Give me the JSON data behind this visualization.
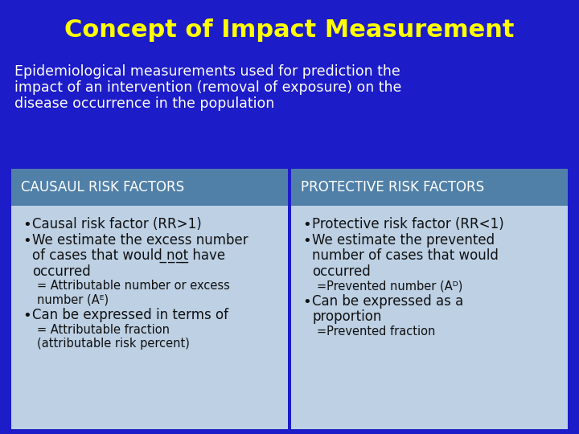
{
  "title": "Concept of Impact Measurement",
  "title_color": "#FFFF00",
  "title_fontsize": 22,
  "bg_color": "#1C1CC8",
  "subtitle_line1": "Epidemiological measurements used for prediction the",
  "subtitle_line2": "impact of an intervention (removal of exposure) on the",
  "subtitle_line3": "disease occurrence in the population",
  "subtitle_color": "#FFFFFF",
  "subtitle_fontsize": 12.5,
  "header_bg": "#5080A8",
  "header_text_color": "#FFFFFF",
  "header_fontsize": 12,
  "cell_bg": "#BDD0E4",
  "cell_text_color": "#111111",
  "left_header": "CAUSAUL RISK FACTORS",
  "right_header": "PROTECTIVE RISK FACTORS",
  "left_items": [
    {
      "bullet": true,
      "text": "Causal risk factor (RR>1)",
      "sub": false,
      "size": 12.0
    },
    {
      "bullet": true,
      "text": "We estimate the excess number",
      "sub": false,
      "size": 12.0
    },
    {
      "bullet": false,
      "text": "of cases that would ̲n̲o̲t̲ have",
      "sub": false,
      "size": 12.0
    },
    {
      "bullet": false,
      "text": "occurred",
      "sub": false,
      "size": 12.0
    },
    {
      "bullet": false,
      "text": "= Attributable number or excess",
      "sub": true,
      "size": 10.5
    },
    {
      "bullet": false,
      "text": "number (Aᴱ)",
      "sub": true,
      "size": 10.5
    },
    {
      "bullet": true,
      "text": "Can be expressed in terms of",
      "sub": false,
      "size": 12.0
    },
    {
      "bullet": false,
      "text": "= Attributable fraction",
      "sub": true,
      "size": 10.5
    },
    {
      "bullet": false,
      "text": "(attributable risk percent)",
      "sub": true,
      "size": 10.5
    }
  ],
  "right_items": [
    {
      "bullet": true,
      "text": "Protective risk factor (RR<1)",
      "sub": false,
      "size": 12.0
    },
    {
      "bullet": true,
      "text": "We estimate the prevented",
      "sub": false,
      "size": 12.0
    },
    {
      "bullet": false,
      "text": "number of cases that would",
      "sub": false,
      "size": 12.0
    },
    {
      "bullet": false,
      "text": "occurred",
      "sub": false,
      "size": 12.0
    },
    {
      "bullet": false,
      "text": "=Prevented number (Aᴰ)",
      "sub": true,
      "size": 10.5
    },
    {
      "bullet": true,
      "text": "Can be expressed as a",
      "sub": false,
      "size": 12.0
    },
    {
      "bullet": false,
      "text": "proportion",
      "sub": false,
      "size": 12.0
    },
    {
      "bullet": false,
      "text": "=Prevented fraction",
      "sub": true,
      "size": 10.5
    }
  ]
}
